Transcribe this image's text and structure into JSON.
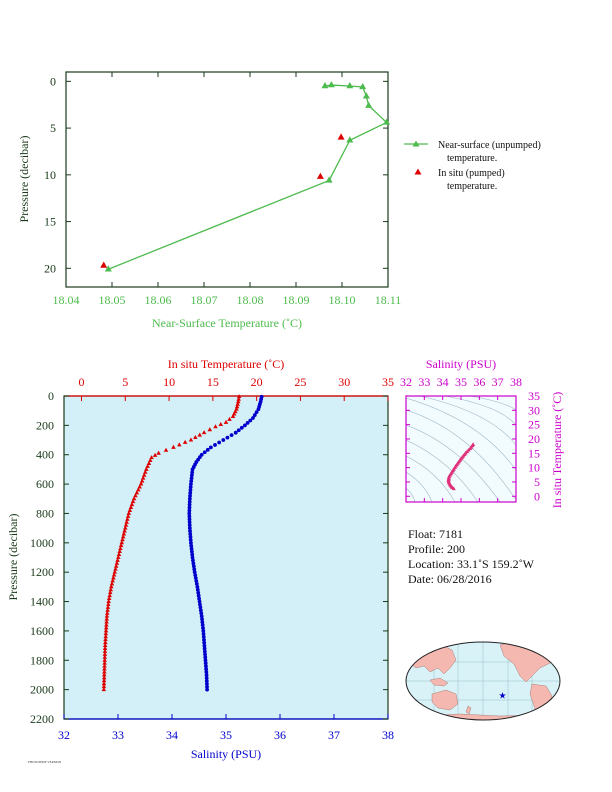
{
  "colors": {
    "near_surface": "#4dbb4d",
    "in_situ_red": "#dd0000",
    "salinity_blue": "#0000cc",
    "salinity_axis": "#cc00cc",
    "profile_bg": "#d3eff7",
    "axis_dark": "#1a3a1a",
    "land": "#f4b8b0",
    "ocean_map": "#d8f2f8"
  },
  "chart_data": [
    {
      "type": "line",
      "title": "",
      "xlabel": "Near-Surface Temperature (˚C)",
      "ylabel": "Pressure (decibar)",
      "xlim": [
        18.04,
        18.11
      ],
      "ylim": [
        22,
        -1
      ],
      "x_ticks": [
        "18.04",
        "18.05",
        "18.06",
        "18.07",
        "18.08",
        "18.09",
        "18.10",
        "18.11"
      ],
      "x_tick_values": [
        18.04,
        18.05,
        18.06,
        18.07,
        18.08,
        18.09,
        18.1,
        18.11
      ],
      "y_ticks": [
        "0",
        "5",
        "10",
        "15",
        "20"
      ],
      "y_tick_values": [
        0,
        5,
        10,
        15,
        20
      ],
      "legend_placement": "right",
      "legend": [
        {
          "label": "Near-surface (unpumped)",
          "label2": "temperature."
        },
        {
          "label": "In situ (pumped)",
          "label2": "temperature."
        }
      ],
      "series": [
        {
          "name": "Near-surface (unpumped) temperature.",
          "marker": "triangle-line",
          "points": [
            [
              18.0963,
              0.5
            ],
            [
              18.0977,
              0.4
            ],
            [
              18.1017,
              0.5
            ],
            [
              18.1045,
              0.6
            ],
            [
              18.1053,
              1.6
            ],
            [
              18.1058,
              2.6
            ],
            [
              18.1097,
              4.4
            ],
            [
              18.1017,
              6.3
            ],
            [
              18.0972,
              10.6
            ],
            [
              18.0492,
              20.1
            ]
          ]
        },
        {
          "name": "In situ (pumped) temperature.",
          "marker": "triangle",
          "points": [
            [
              18.0998,
              6.0
            ],
            [
              18.0953,
              10.2
            ],
            [
              18.0482,
              19.7
            ]
          ]
        }
      ]
    },
    {
      "type": "scatter",
      "title": "",
      "ylabel": "Pressure (decibar)",
      "top_xlabel": "In situ Temperature (˚C)",
      "bottom_xlabel": "Salinity (PSU)",
      "temperature_xlim": [
        -2,
        35
      ],
      "temperature_ticks": [
        "0",
        "5",
        "10",
        "15",
        "20",
        "25",
        "30",
        "35"
      ],
      "temperature_tick_values": [
        0,
        5,
        10,
        15,
        20,
        25,
        30,
        35
      ],
      "salinity_xlim": [
        32,
        38
      ],
      "salinity_ticks": [
        "32",
        "33",
        "34",
        "35",
        "36",
        "37",
        "38"
      ],
      "salinity_tick_values": [
        32,
        33,
        34,
        35,
        36,
        37,
        38
      ],
      "ylim": [
        2200,
        0
      ],
      "y_ticks": [
        "0",
        "200",
        "400",
        "600",
        "800",
        "1000",
        "1200",
        "1400",
        "1600",
        "1800",
        "2000",
        "2200"
      ],
      "y_tick_values": [
        0,
        200,
        400,
        600,
        800,
        1000,
        1200,
        1400,
        1600,
        1800,
        2000,
        2200
      ],
      "temperature_profile": [
        [
          18.0,
          5
        ],
        [
          17.9,
          40
        ],
        [
          17.7,
          90
        ],
        [
          17.3,
          140
        ],
        [
          16.5,
          180
        ],
        [
          15.3,
          210
        ],
        [
          14.0,
          250
        ],
        [
          12.5,
          300
        ],
        [
          10.5,
          350
        ],
        [
          8.8,
          390
        ],
        [
          8.0,
          420
        ],
        [
          7.4,
          500
        ],
        [
          6.8,
          600
        ],
        [
          6.0,
          700
        ],
        [
          5.4,
          800
        ],
        [
          5.0,
          900
        ],
        [
          4.6,
          1000
        ],
        [
          4.2,
          1100
        ],
        [
          3.8,
          1200
        ],
        [
          3.4,
          1300
        ],
        [
          3.1,
          1400
        ],
        [
          2.9,
          1500
        ],
        [
          2.8,
          1600
        ],
        [
          2.7,
          1700
        ],
        [
          2.65,
          1800
        ],
        [
          2.6,
          1900
        ],
        [
          2.55,
          2000
        ]
      ],
      "salinity_profile": [
        [
          35.66,
          5
        ],
        [
          35.64,
          40
        ],
        [
          35.6,
          90
        ],
        [
          35.5,
          150
        ],
        [
          35.35,
          200
        ],
        [
          35.18,
          250
        ],
        [
          34.95,
          300
        ],
        [
          34.72,
          350
        ],
        [
          34.55,
          400
        ],
        [
          34.45,
          450
        ],
        [
          34.38,
          500
        ],
        [
          34.35,
          600
        ],
        [
          34.33,
          700
        ],
        [
          34.32,
          800
        ],
        [
          34.33,
          900
        ],
        [
          34.35,
          1000
        ],
        [
          34.38,
          1100
        ],
        [
          34.42,
          1200
        ],
        [
          34.47,
          1300
        ],
        [
          34.51,
          1400
        ],
        [
          34.55,
          1500
        ],
        [
          34.58,
          1600
        ],
        [
          34.6,
          1700
        ],
        [
          34.62,
          1800
        ],
        [
          34.64,
          1900
        ],
        [
          34.65,
          2000
        ]
      ]
    },
    {
      "type": "scatter",
      "title": "",
      "xlabel": "Salinity (PSU)",
      "ylabel": "In situ Temperature (˚C)",
      "xlim": [
        32,
        38
      ],
      "x_ticks": [
        "32",
        "33",
        "34",
        "35",
        "36",
        "37",
        "38"
      ],
      "x_tick_values": [
        32,
        33,
        34,
        35,
        36,
        37,
        38
      ],
      "ylim": [
        -2,
        35
      ],
      "y_ticks": [
        "0",
        "5",
        "10",
        "15",
        "20",
        "25",
        "30",
        "35"
      ],
      "y_tick_values": [
        0,
        5,
        10,
        15,
        20,
        25,
        30,
        35
      ],
      "points": [
        [
          34.6,
          2.6
        ],
        [
          34.52,
          3.0
        ],
        [
          34.42,
          3.8
        ],
        [
          34.35,
          4.6
        ],
        [
          34.32,
          5.4
        ],
        [
          34.35,
          6.8
        ],
        [
          34.45,
          7.8
        ],
        [
          34.72,
          10.5
        ],
        [
          35.0,
          13.0
        ],
        [
          35.25,
          15.0
        ],
        [
          35.5,
          16.6
        ],
        [
          35.62,
          17.6
        ],
        [
          35.66,
          18.0
        ]
      ]
    }
  ],
  "float_info": {
    "float": "Float:  7181",
    "profile": "Profile:  200",
    "location": "Location:  33.1˚S  159.2˚W",
    "date": "Date:  06/28/2016"
  },
  "map": {
    "marker_symbol": "★",
    "marker_lon": -159.2,
    "marker_lat": -33.1
  },
  "footer": {
    "stamp": "PHOTOSHOP VERSION"
  }
}
